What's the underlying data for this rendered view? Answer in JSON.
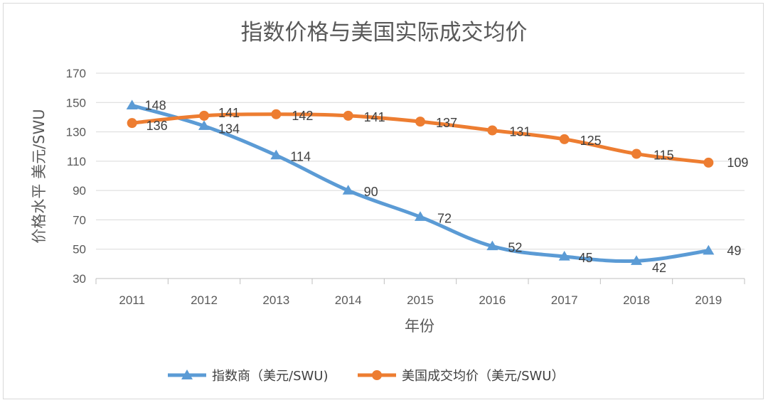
{
  "chart_data": {
    "type": "line",
    "title": "指数价格与美国实际成交均价",
    "xlabel": "年份",
    "ylabel": "价格水平 美元/SWU",
    "categories": [
      "2011",
      "2012",
      "2013",
      "2014",
      "2015",
      "2016",
      "2017",
      "2018",
      "2019"
    ],
    "ylim": [
      30,
      170
    ],
    "yticks": [
      30,
      50,
      70,
      90,
      110,
      130,
      150,
      170
    ],
    "grid": true,
    "legend_position": "bottom",
    "series": [
      {
        "name": "指数商（美元/SWU)",
        "values": [
          148,
          134,
          114,
          90,
          72,
          52,
          45,
          42,
          49
        ],
        "color": "#5b9bd5",
        "marker": "triangle"
      },
      {
        "name": "美国成交均价（美元/SWU）",
        "values": [
          136,
          141,
          142,
          141,
          137,
          131,
          125,
          115,
          109
        ],
        "color": "#ed7d31",
        "marker": "circle"
      }
    ]
  }
}
